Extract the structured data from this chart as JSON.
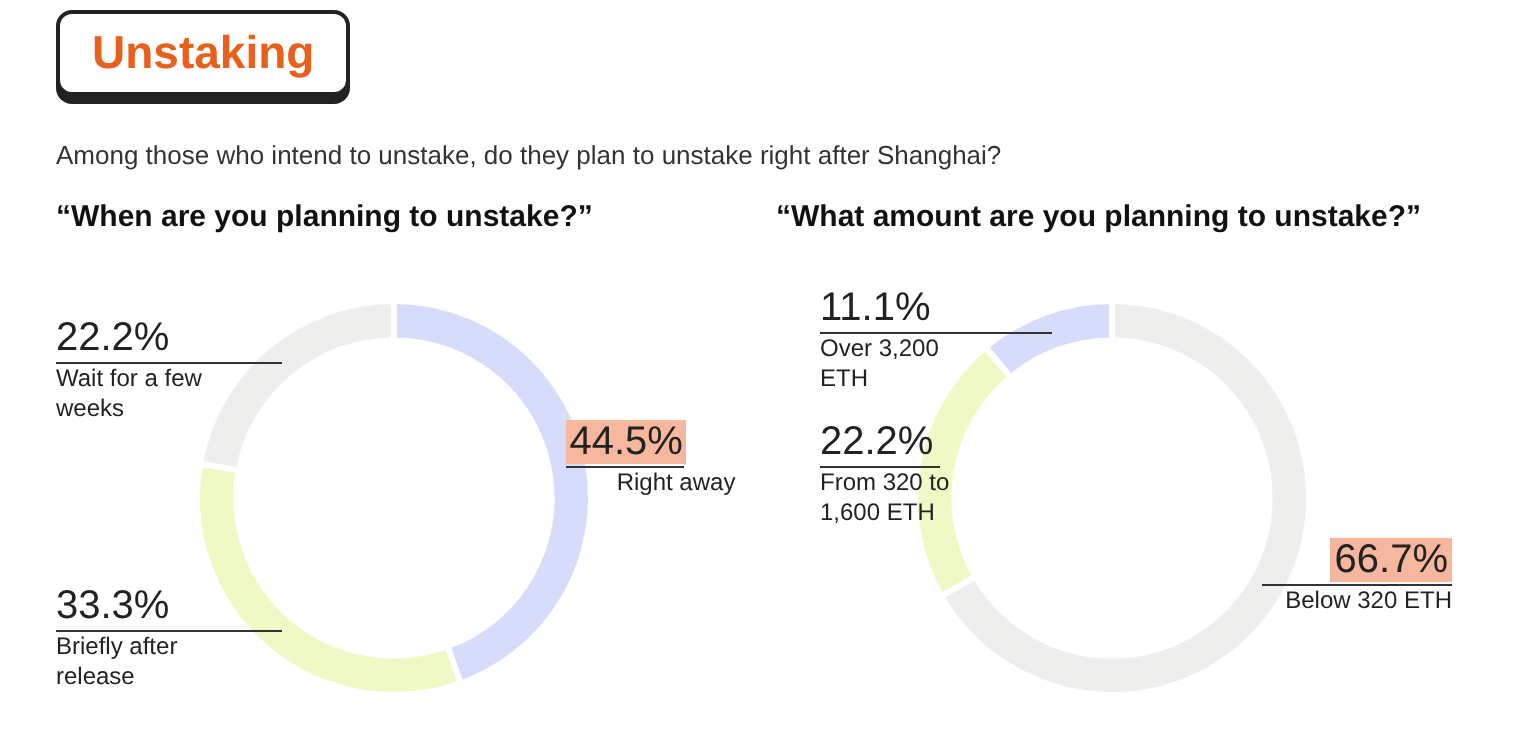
{
  "chart_data": [
    {
      "type": "other",
      "title": "Unstaking",
      "subtitle": "Among those who intend to unstake, do they plan to unstake right after Shanghai?"
    },
    {
      "type": "donut",
      "title": "“When are you planning to unstake?”",
      "categories": [
        "Right away",
        "Briefly after release",
        "Wait for a few weeks"
      ],
      "values": [
        44.5,
        33.3,
        22.2
      ],
      "value_labels": [
        "44.5%",
        "33.3%",
        "22.2%"
      ],
      "colors": [
        "#d8dcfb",
        "#eef9c6",
        "#eeeeec"
      ]
    },
    {
      "type": "donut",
      "title": "“What amount are you planning to unstake?”",
      "categories": [
        "Below 320 ETH",
        "From 320 to 1,600 ETH",
        "Over 3,200 ETH"
      ],
      "values": [
        66.7,
        22.2,
        11.1
      ],
      "value_labels": [
        "66.7%",
        "22.2%",
        "11.1%"
      ],
      "colors": [
        "#eeeeec",
        "#eef9c6",
        "#d8dcfb"
      ]
    }
  ]
}
